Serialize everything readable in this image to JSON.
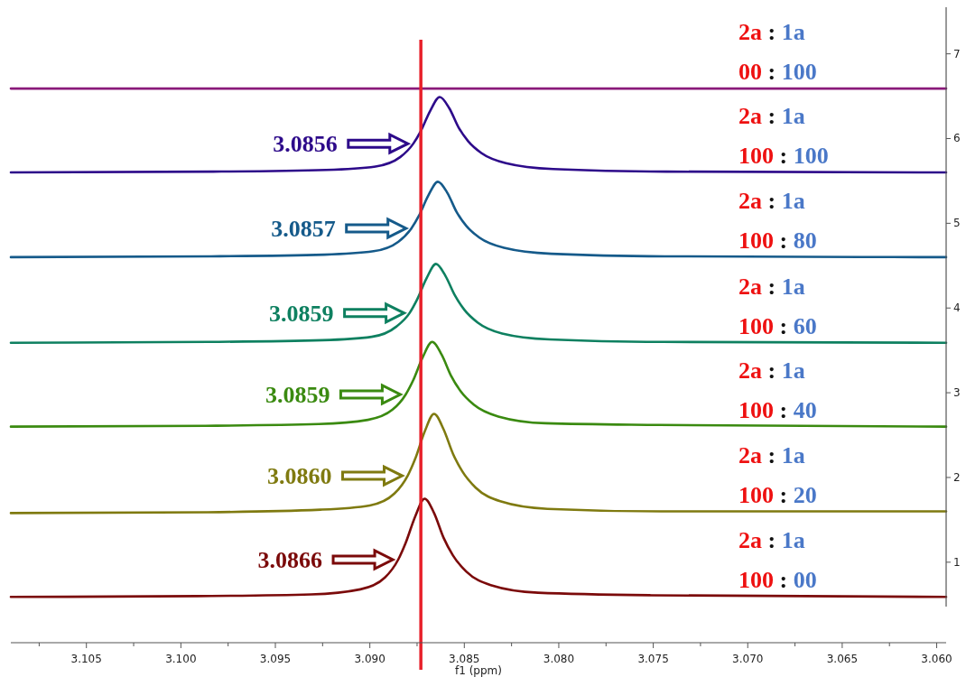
{
  "chart_data": {
    "type": "line",
    "xlabel": "f1 (ppm)",
    "xlim": [
      3.109,
      3.0595
    ],
    "ylim": [
      0.05,
      7.55
    ],
    "xticks": [
      {
        "value": 3.1075,
        "label": null
      },
      3.105,
      {
        "value": 3.1025,
        "label": null
      },
      "3.100",
      {
        "value": 3.0975,
        "label": null
      },
      3.095,
      {
        "value": 3.0925,
        "label": null
      },
      "3.090",
      {
        "value": 3.0875,
        "label": null
      },
      3.085,
      {
        "value": 3.0825,
        "label": null
      },
      "3.080",
      {
        "value": 3.0775,
        "label": null
      },
      3.075,
      {
        "value": 3.0725,
        "label": null
      },
      "3.070",
      {
        "value": 3.0675,
        "label": null
      },
      3.065,
      {
        "value": 3.0625,
        "label": null
      },
      "3.060"
    ],
    "yticks": [
      1,
      2,
      3,
      4,
      5,
      6,
      7
    ],
    "grid": false,
    "marker": "none",
    "line_style": "solid",
    "series": [
      {
        "name": "2a : 1a\n100 : 00",
        "color": "#7b0a0a",
        "x": [
          3.109,
          3.0991,
          3.0931,
          3.0905,
          3.0892,
          3.0885,
          3.0881,
          3.0876,
          3.0871,
          3.0866,
          3.0861,
          3.0856,
          3.0849,
          3.0836,
          3.0811,
          3.0751,
          3.0595
        ],
        "values": [
          0.59,
          0.6,
          0.62,
          0.68,
          0.82,
          1.03,
          1.23,
          1.54,
          1.75,
          1.58,
          1.29,
          1.08,
          0.89,
          0.73,
          0.64,
          0.61,
          0.59
        ]
      },
      {
        "name": "2a : 1a\n100 : 20",
        "color": "#7f7a10",
        "x": [
          3.109,
          3.0986,
          3.0926,
          3.09,
          3.0887,
          3.088,
          3.0876,
          3.0871,
          3.0866,
          3.0861,
          3.0856,
          3.0851,
          3.0844,
          3.0831,
          3.0806,
          3.0746,
          3.0595
        ],
        "values": [
          1.58,
          1.59,
          1.62,
          1.67,
          1.81,
          2.02,
          2.22,
          2.54,
          2.75,
          2.57,
          2.28,
          2.07,
          1.88,
          1.72,
          1.63,
          1.6,
          1.6
        ]
      },
      {
        "name": "2a : 1a\n100 : 40",
        "color": "#3a8a10",
        "x": [
          3.109,
          3.0987,
          3.0927,
          3.0901,
          3.0888,
          3.0881,
          3.0877,
          3.0872,
          3.0867,
          3.0862,
          3.0857,
          3.0852,
          3.0845,
          3.0832,
          3.0807,
          3.0747,
          3.0595
        ],
        "values": [
          2.6,
          2.61,
          2.63,
          2.68,
          2.8,
          2.98,
          3.15,
          3.42,
          3.6,
          3.45,
          3.2,
          3.02,
          2.86,
          2.72,
          2.64,
          2.62,
          2.6
        ]
      },
      {
        "name": "2a : 1a\n100 : 60",
        "color": "#0e8060",
        "x": [
          3.109,
          3.0985,
          3.0925,
          3.0899,
          3.0886,
          3.0879,
          3.0875,
          3.087,
          3.0865,
          3.086,
          3.0855,
          3.085,
          3.0843,
          3.083,
          3.0805,
          3.0745,
          3.0595
        ],
        "values": [
          3.59,
          3.6,
          3.62,
          3.66,
          3.78,
          3.94,
          4.1,
          4.35,
          4.52,
          4.38,
          4.15,
          3.98,
          3.83,
          3.7,
          3.63,
          3.6,
          3.59
        ]
      },
      {
        "name": "2a : 1a\n100 : 80",
        "color": "#155a8a",
        "x": [
          3.109,
          3.0984,
          3.0924,
          3.0898,
          3.0885,
          3.0878,
          3.0874,
          3.0869,
          3.0864,
          3.0859,
          3.0854,
          3.0849,
          3.0842,
          3.0829,
          3.0804,
          3.0744,
          3.0595
        ],
        "values": [
          4.6,
          4.61,
          4.63,
          4.67,
          4.78,
          4.94,
          5.09,
          5.33,
          5.49,
          5.36,
          5.13,
          4.97,
          4.83,
          4.71,
          4.64,
          4.61,
          4.6
        ]
      },
      {
        "name": "2a : 1a\n100 : 100",
        "color": "#2d0a8a",
        "x": [
          3.109,
          3.0983,
          3.0923,
          3.0897,
          3.0884,
          3.0877,
          3.0873,
          3.0868,
          3.0863,
          3.0858,
          3.0853,
          3.0848,
          3.0841,
          3.0828,
          3.0803,
          3.0743,
          3.0595
        ],
        "values": [
          5.6,
          5.61,
          5.63,
          5.67,
          5.78,
          5.94,
          6.09,
          6.33,
          6.49,
          6.36,
          6.13,
          5.97,
          5.83,
          5.71,
          5.64,
          5.61,
          5.6
        ]
      },
      {
        "name": "2a : 1a\n00 : 100",
        "color": "#8a1a7a",
        "x": [
          3.109,
          3.0595
        ],
        "values": [
          6.59,
          6.59
        ]
      }
    ],
    "ref_lines": [
      {
        "axis": "x",
        "value": 3.0873,
        "color": "#e8202a"
      }
    ],
    "annotations": [
      "3.0866",
      "3.0860",
      "3.0859",
      "3.0859",
      "3.0857",
      "3.0856"
    ]
  }
}
